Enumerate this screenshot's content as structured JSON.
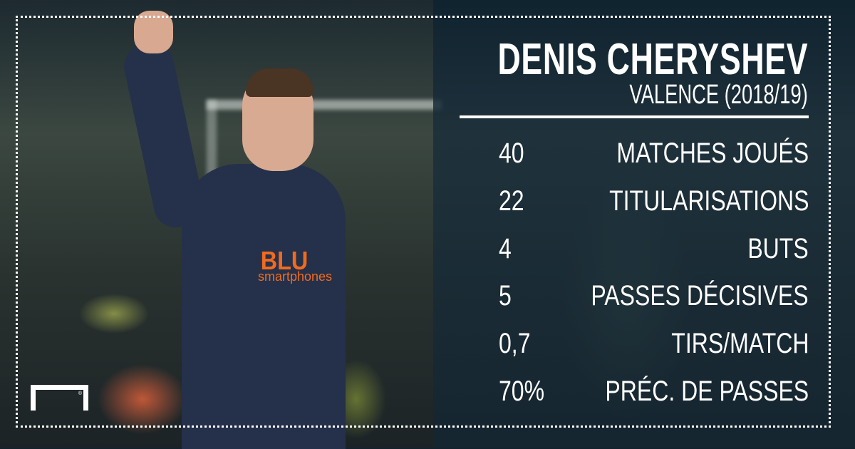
{
  "player": {
    "name": "DENIS CHERYSHEV",
    "team_season": "VALENCE (2018/19)"
  },
  "sponsor": {
    "brand": "BLU",
    "tagline": "smartphones"
  },
  "stats": [
    {
      "value": "40",
      "label": "MATCHES JOUÉS"
    },
    {
      "value": "22",
      "label": "TITULARISATIONS"
    },
    {
      "value": "4",
      "label": "BUTS"
    },
    {
      "value": "5",
      "label": "PASSES DÉCISIVES"
    },
    {
      "value": "0,7",
      "label": "TIRS/MATCH"
    },
    {
      "value": "70%",
      "label": "PRÉC. DE PASSES"
    }
  ],
  "logo": {
    "icon": "goal-logo-icon",
    "mark": "®"
  },
  "colors": {
    "panel": "#14283a",
    "text": "#ffffff",
    "accent": "#f06b1e"
  }
}
